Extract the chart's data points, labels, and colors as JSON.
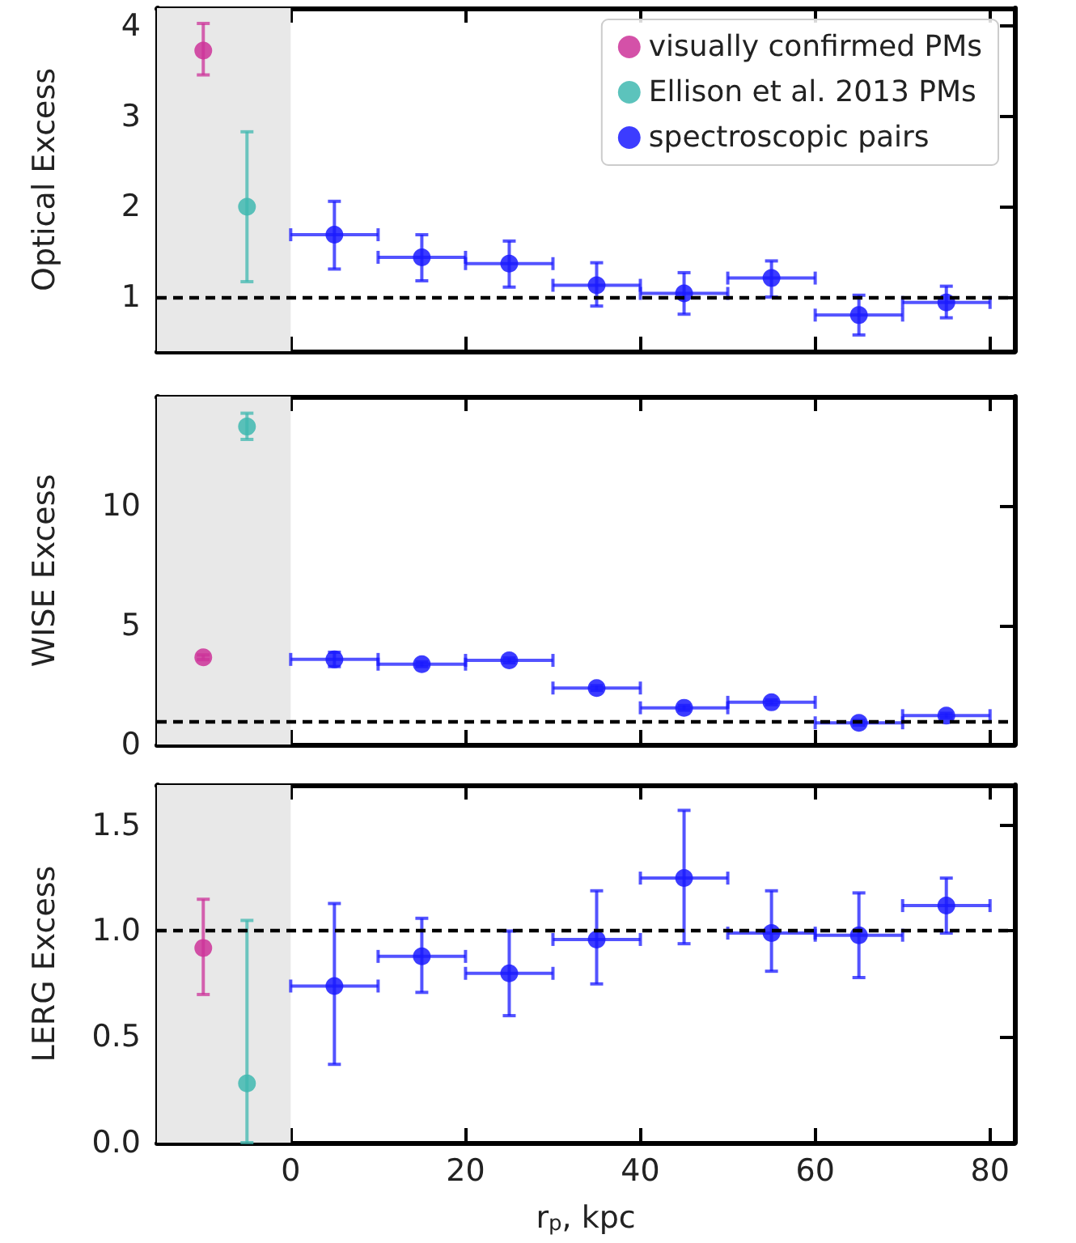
{
  "chart_data": [
    {
      "type": "scatter",
      "ylabel": "Optical Excess",
      "xlim": [
        -15.3,
        82.8
      ],
      "xticks": [
        0,
        20,
        40,
        60,
        80
      ],
      "ylim": [
        0.4,
        4.2
      ],
      "yticks": [
        1,
        2,
        3,
        4
      ],
      "tick_labels": "y",
      "legend": "top right",
      "marker": "circle",
      "ref_lines": [
        {
          "axis": "y",
          "value": 1,
          "color": "#000000",
          "line_style": "dashed"
        }
      ],
      "bands": [
        {
          "axis": "x",
          "from": -15.3,
          "to": 0,
          "color": "#e8e8e8"
        }
      ],
      "series": [
        {
          "name": "visually confirmed PMs",
          "color": "#cc3399",
          "x": [
            -10
          ],
          "values": [
            3.73
          ],
          "errors": [
            [
              3.46,
              4.03
            ]
          ]
        },
        {
          "name": "Ellison et al. 2013 PMs",
          "color": "#40b8b0",
          "x": [
            -5
          ],
          "values": [
            2.0
          ],
          "errors": [
            [
              1.17,
              2.83
            ]
          ]
        },
        {
          "name": "spectroscopic pairs",
          "color": "#1a1aff",
          "x": [
            5,
            15,
            25,
            35,
            45,
            55,
            65,
            75
          ],
          "values": [
            1.69,
            1.44,
            1.37,
            1.13,
            1.04,
            1.21,
            0.8,
            0.94
          ],
          "errors": [
            [
              1.31,
              2.06
            ],
            [
              1.18,
              1.69
            ],
            [
              1.11,
              1.62
            ],
            [
              0.9,
              1.38
            ],
            [
              0.81,
              1.27
            ],
            [
              1.0,
              1.4
            ],
            [
              0.58,
              1.02
            ],
            [
              0.77,
              1.12
            ]
          ],
          "xerrors": [
            5,
            5,
            5,
            5,
            5,
            5,
            5,
            5
          ]
        }
      ]
    },
    {
      "type": "scatter",
      "ylabel": "WISE Excess",
      "xlim": [
        -15.3,
        82.8
      ],
      "xticks": [
        0,
        20,
        40,
        60,
        80
      ],
      "ylim": [
        0,
        14.6
      ],
      "yticks": [
        0,
        5,
        10
      ],
      "tick_labels": "y",
      "marker": "circle",
      "ref_lines": [
        {
          "axis": "y",
          "value": 1,
          "color": "#000000",
          "line_style": "dashed"
        }
      ],
      "bands": [
        {
          "axis": "x",
          "from": -15.3,
          "to": 0,
          "color": "#e8e8e8"
        }
      ],
      "series": [
        {
          "color": "#cc3399",
          "x": [
            -10
          ],
          "values": [
            3.66
          ],
          "errors": [
            [
              3.56,
              3.76
            ]
          ]
        },
        {
          "color": "#40b8b0",
          "x": [
            -5
          ],
          "values": [
            13.34
          ],
          "errors": [
            [
              12.8,
              13.9
            ]
          ]
        },
        {
          "color": "#1a1aff",
          "x": [
            5,
            15,
            25,
            35,
            45,
            55,
            65,
            75
          ],
          "values": [
            3.57,
            3.37,
            3.53,
            2.37,
            1.54,
            1.77,
            0.91,
            1.21
          ],
          "errors": [
            [
              3.27,
              3.87
            ],
            0.1,
            0.1,
            0.1,
            0.1,
            0.1,
            0.1,
            0.1
          ],
          "xerrors": [
            5,
            5,
            5,
            5,
            5,
            5,
            5,
            5
          ]
        }
      ]
    },
    {
      "type": "scatter",
      "ylabel": "LERG Excess",
      "xlabel": "r$_{p}$, kpc",
      "xlim": [
        -15.3,
        82.8
      ],
      "xticks": [
        0,
        20,
        40,
        60,
        80
      ],
      "ylim": [
        0,
        1.69
      ],
      "yticks": [
        {
          "value": 0,
          "label": "0.0"
        },
        {
          "value": 0.5,
          "label": "0.5"
        },
        {
          "value": 1,
          "label": "1.0"
        },
        {
          "value": 1.5,
          "label": "1.5"
        }
      ],
      "marker": "circle",
      "ref_lines": [
        {
          "axis": "y",
          "value": 1,
          "color": "#000000",
          "line_style": "dashed"
        }
      ],
      "bands": [
        {
          "axis": "x",
          "from": -15.3,
          "to": 0,
          "color": "#e8e8e8"
        }
      ],
      "series": [
        {
          "color": "#cc3399",
          "x": [
            -10
          ],
          "values": [
            0.92
          ],
          "errors": [
            [
              0.7,
              1.15
            ]
          ]
        },
        {
          "color": "#40b8b0",
          "x": [
            -5
          ],
          "values": [
            0.28
          ],
          "errors": [
            [
              0,
              1.05
            ]
          ]
        },
        {
          "color": "#1a1aff",
          "x": [
            5,
            15,
            25,
            35,
            45,
            55,
            65,
            75
          ],
          "values": [
            0.74,
            0.88,
            0.8,
            0.96,
            1.25,
            0.99,
            0.98,
            1.12
          ],
          "errors": [
            [
              0.37,
              1.13
            ],
            [
              0.71,
              1.06
            ],
            [
              0.6,
              1.0
            ],
            [
              0.75,
              1.19
            ],
            [
              0.94,
              1.57
            ],
            [
              0.81,
              1.19
            ],
            [
              0.78,
              1.18
            ],
            [
              0.99,
              1.25
            ]
          ],
          "xerrors": [
            5,
            5,
            5,
            5,
            5,
            5,
            5,
            5
          ]
        }
      ]
    }
  ]
}
